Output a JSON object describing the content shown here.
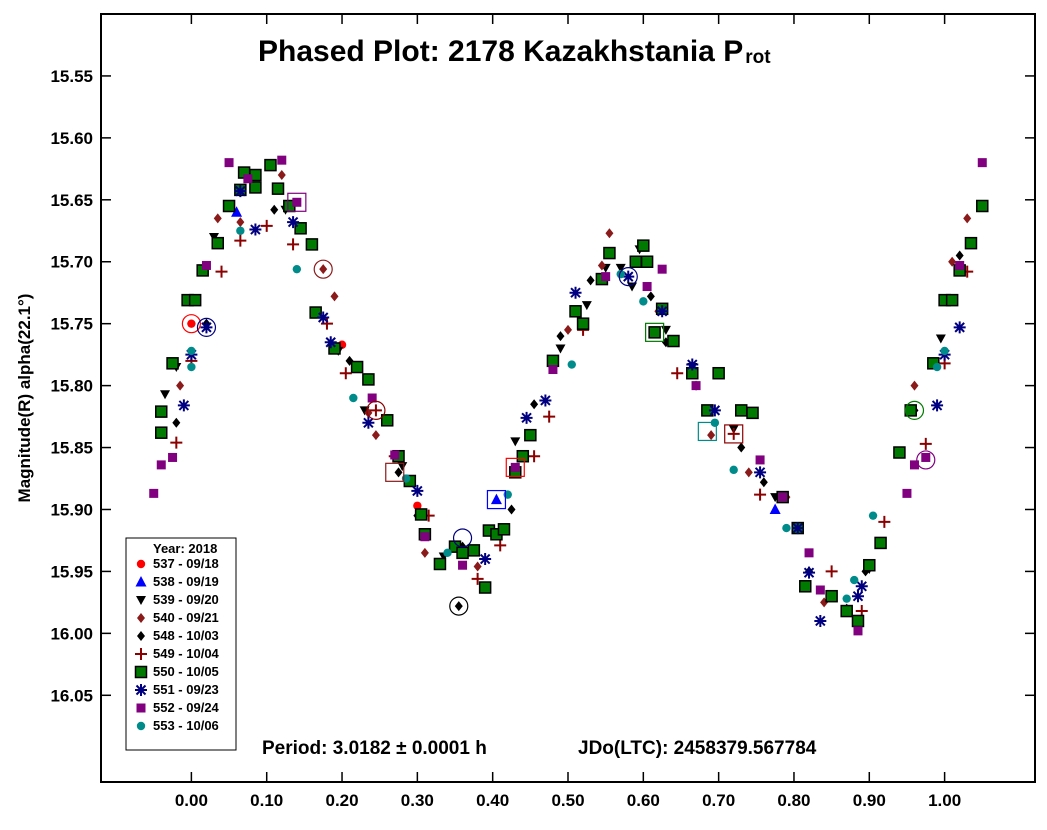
{
  "chart_data": {
    "type": "scatter",
    "title": "Phased Plot: 2178 Kazakhstania P",
    "title_subscript": "rot",
    "xlabel": "",
    "ylabel": "Magnitude(R) alpha(22.1°)",
    "xlim": [
      -0.12,
      1.12
    ],
    "ylim": [
      16.12,
      15.5
    ],
    "y_inverted": true,
    "grid": false,
    "x_ticks": [
      {
        "v": 0.0,
        "label": "0.00"
      },
      {
        "v": 0.1,
        "label": "0.10"
      },
      {
        "v": 0.2,
        "label": "0.20"
      },
      {
        "v": 0.3,
        "label": "0.30"
      },
      {
        "v": 0.4,
        "label": "0.40"
      },
      {
        "v": 0.5,
        "label": "0.50"
      },
      {
        "v": 0.6,
        "label": "0.60"
      },
      {
        "v": 0.7,
        "label": "0.70"
      },
      {
        "v": 0.8,
        "label": "0.80"
      },
      {
        "v": 0.9,
        "label": "0.90"
      },
      {
        "v": 1.0,
        "label": "1.00"
      }
    ],
    "y_ticks": [
      {
        "v": 15.55,
        "label": "15.55"
      },
      {
        "v": 15.6,
        "label": "15.60"
      },
      {
        "v": 15.65,
        "label": "15.65"
      },
      {
        "v": 15.7,
        "label": "15.70"
      },
      {
        "v": 15.75,
        "label": "15.75"
      },
      {
        "v": 15.8,
        "label": "15.80"
      },
      {
        "v": 15.85,
        "label": "15.85"
      },
      {
        "v": 15.9,
        "label": "15.90"
      },
      {
        "v": 15.95,
        "label": "15.95"
      },
      {
        "v": 16.0,
        "label": "16.00"
      },
      {
        "v": 16.05,
        "label": "16.05"
      }
    ],
    "annotations": {
      "period": "Period: 3.0182 ± 0.0001 h",
      "jdo": "JDo(LTC): 2458379.567784"
    },
    "legend_title": "Year: 2018",
    "legend_position": "bottom-left",
    "series": [
      {
        "name": "537 - 09/18",
        "marker": "circle",
        "color": "#ff0000",
        "points": [
          [
            0.0,
            15.75
          ],
          [
            0.2,
            15.767
          ],
          [
            0.3,
            15.897
          ]
        ]
      },
      {
        "name": "538 - 09/19",
        "marker": "triangle-up",
        "color": "#0000ff",
        "points": [
          [
            0.405,
            15.892
          ],
          [
            0.06,
            15.66
          ],
          [
            0.775,
            15.9
          ]
        ]
      },
      {
        "name": "539 - 09/20",
        "marker": "triangle-down",
        "color": "#000000",
        "points": [
          [
            -0.035,
            15.807
          ],
          [
            -0.02,
            15.785
          ],
          [
            0.03,
            15.68
          ],
          [
            0.125,
            15.658
          ],
          [
            0.195,
            15.772
          ],
          [
            0.23,
            15.82
          ],
          [
            0.28,
            15.865
          ],
          [
            0.335,
            15.938
          ],
          [
            0.43,
            15.845
          ],
          [
            0.49,
            15.77
          ],
          [
            0.525,
            15.735
          ],
          [
            0.55,
            15.705
          ],
          [
            0.57,
            15.705
          ],
          [
            0.595,
            15.69
          ],
          [
            0.585,
            15.72
          ],
          [
            0.63,
            15.755
          ],
          [
            0.665,
            15.785
          ],
          [
            0.72,
            15.835
          ],
          [
            0.775,
            15.89
          ],
          [
            0.85,
            15.97
          ],
          [
            0.9,
            15.948
          ],
          [
            0.995,
            15.762
          ],
          [
            1.035,
            15.685
          ]
        ]
      },
      {
        "name": "540 - 09/21",
        "marker": "diamond",
        "color": "#8b1a1a",
        "points": [
          [
            -0.015,
            15.8
          ],
          [
            0.035,
            15.665
          ],
          [
            0.065,
            15.668
          ],
          [
            0.12,
            15.63
          ],
          [
            0.175,
            15.706
          ],
          [
            0.19,
            15.728
          ],
          [
            0.235,
            15.822
          ],
          [
            0.245,
            15.84
          ],
          [
            0.31,
            15.935
          ],
          [
            0.38,
            15.946
          ],
          [
            0.5,
            15.755
          ],
          [
            0.545,
            15.703
          ],
          [
            0.555,
            15.677
          ],
          [
            0.62,
            15.74
          ],
          [
            0.69,
            15.84
          ],
          [
            0.74,
            15.87
          ],
          [
            0.79,
            15.89
          ],
          [
            0.84,
            15.975
          ],
          [
            0.96,
            15.8
          ],
          [
            1.01,
            15.7
          ],
          [
            1.03,
            15.665
          ]
        ]
      },
      {
        "name": "548 - 10/03",
        "marker": "diamond",
        "color": "#000000",
        "points": [
          [
            -0.02,
            15.83
          ],
          [
            0.02,
            15.75
          ],
          [
            0.11,
            15.658
          ],
          [
            0.21,
            15.78
          ],
          [
            0.275,
            15.87
          ],
          [
            0.3,
            15.905
          ],
          [
            0.355,
            15.978
          ],
          [
            0.36,
            15.93
          ],
          [
            0.425,
            15.9
          ],
          [
            0.455,
            15.815
          ],
          [
            0.49,
            15.76
          ],
          [
            0.53,
            15.715
          ],
          [
            0.61,
            15.728
          ],
          [
            0.63,
            15.765
          ],
          [
            0.67,
            15.8
          ],
          [
            0.73,
            15.85
          ],
          [
            0.76,
            15.878
          ],
          [
            0.82,
            15.95
          ],
          [
            0.87,
            15.98
          ],
          [
            0.895,
            15.95
          ],
          [
            0.96,
            15.82
          ],
          [
            1.02,
            15.695
          ]
        ]
      },
      {
        "name": "549 - 10/04",
        "marker": "plus",
        "color": "#8b0000",
        "points": [
          [
            -0.02,
            15.846
          ],
          [
            0.0,
            15.78
          ],
          [
            0.04,
            15.708
          ],
          [
            0.065,
            15.683
          ],
          [
            0.1,
            15.671
          ],
          [
            0.135,
            15.686
          ],
          [
            0.18,
            15.75
          ],
          [
            0.205,
            15.79
          ],
          [
            0.245,
            15.82
          ],
          [
            0.27,
            15.857
          ],
          [
            0.315,
            15.905
          ],
          [
            0.38,
            15.956
          ],
          [
            0.41,
            15.929
          ],
          [
            0.455,
            15.857
          ],
          [
            0.475,
            15.825
          ],
          [
            0.52,
            15.755
          ],
          [
            0.645,
            15.79
          ],
          [
            0.72,
            15.839
          ],
          [
            0.755,
            15.888
          ],
          [
            0.85,
            15.95
          ],
          [
            0.89,
            15.982
          ],
          [
            0.92,
            15.91
          ],
          [
            0.975,
            15.847
          ],
          [
            1.0,
            15.782
          ],
          [
            1.03,
            15.708
          ]
        ]
      },
      {
        "name": "550 - 10/05",
        "marker": "square",
        "color": "#007a00",
        "points": [
          [
            -0.04,
            15.838
          ],
          [
            -0.04,
            15.821
          ],
          [
            -0.025,
            15.782
          ],
          [
            -0.005,
            15.731
          ],
          [
            0.005,
            15.731
          ],
          [
            0.015,
            15.707
          ],
          [
            0.035,
            15.685
          ],
          [
            0.05,
            15.655
          ],
          [
            0.065,
            15.642
          ],
          [
            0.07,
            15.628
          ],
          [
            0.085,
            15.63
          ],
          [
            0.085,
            15.64
          ],
          [
            0.105,
            15.622
          ],
          [
            0.115,
            15.641
          ],
          [
            0.13,
            15.655
          ],
          [
            0.145,
            15.673
          ],
          [
            0.16,
            15.686
          ],
          [
            0.165,
            15.741
          ],
          [
            0.19,
            15.77
          ],
          [
            0.22,
            15.785
          ],
          [
            0.235,
            15.795
          ],
          [
            0.26,
            15.828
          ],
          [
            0.275,
            15.857
          ],
          [
            0.29,
            15.877
          ],
          [
            0.305,
            15.904
          ],
          [
            0.31,
            15.92
          ],
          [
            0.33,
            15.944
          ],
          [
            0.35,
            15.93
          ],
          [
            0.36,
            15.935
          ],
          [
            0.375,
            15.933
          ],
          [
            0.39,
            15.963
          ],
          [
            0.395,
            15.917
          ],
          [
            0.405,
            15.92
          ],
          [
            0.415,
            15.916
          ],
          [
            0.43,
            15.87
          ],
          [
            0.44,
            15.857
          ],
          [
            0.45,
            15.84
          ],
          [
            0.48,
            15.78
          ],
          [
            0.51,
            15.74
          ],
          [
            0.52,
            15.75
          ],
          [
            0.545,
            15.714
          ],
          [
            0.555,
            15.693
          ],
          [
            0.59,
            15.7
          ],
          [
            0.6,
            15.687
          ],
          [
            0.605,
            15.7
          ],
          [
            0.615,
            15.757
          ],
          [
            0.625,
            15.738
          ],
          [
            0.64,
            15.764
          ],
          [
            0.665,
            15.79
          ],
          [
            0.685,
            15.82
          ],
          [
            0.7,
            15.79
          ],
          [
            0.73,
            15.82
          ],
          [
            0.745,
            15.822
          ],
          [
            0.785,
            15.89
          ],
          [
            0.805,
            15.915
          ],
          [
            0.815,
            15.962
          ],
          [
            0.85,
            15.97
          ],
          [
            0.87,
            15.982
          ],
          [
            0.885,
            15.99
          ],
          [
            0.9,
            15.945
          ],
          [
            0.915,
            15.927
          ],
          [
            0.94,
            15.854
          ],
          [
            0.955,
            15.82
          ],
          [
            0.985,
            15.782
          ],
          [
            1.0,
            15.731
          ],
          [
            1.01,
            15.731
          ],
          [
            1.02,
            15.707
          ],
          [
            1.035,
            15.685
          ],
          [
            1.05,
            15.655
          ]
        ]
      },
      {
        "name": "551 - 09/23",
        "marker": "asterisk",
        "color": "#000080",
        "points": [
          [
            -0.01,
            15.816
          ],
          [
            0.0,
            15.775
          ],
          [
            0.02,
            15.753
          ],
          [
            0.065,
            15.643
          ],
          [
            0.085,
            15.674
          ],
          [
            0.135,
            15.668
          ],
          [
            0.175,
            15.745
          ],
          [
            0.185,
            15.765
          ],
          [
            0.235,
            15.83
          ],
          [
            0.3,
            15.885
          ],
          [
            0.39,
            15.94
          ],
          [
            0.445,
            15.826
          ],
          [
            0.47,
            15.812
          ],
          [
            0.51,
            15.725
          ],
          [
            0.58,
            15.712
          ],
          [
            0.625,
            15.74
          ],
          [
            0.665,
            15.783
          ],
          [
            0.695,
            15.82
          ],
          [
            0.755,
            15.87
          ],
          [
            0.805,
            15.915
          ],
          [
            0.82,
            15.951
          ],
          [
            0.835,
            15.99
          ],
          [
            0.885,
            15.97
          ],
          [
            0.89,
            15.962
          ],
          [
            0.99,
            15.816
          ],
          [
            1.0,
            15.775
          ],
          [
            1.02,
            15.753
          ]
        ]
      },
      {
        "name": "552 - 09/24",
        "marker": "square",
        "color": "#800080",
        "points": [
          [
            -0.05,
            15.887
          ],
          [
            -0.04,
            15.864
          ],
          [
            -0.025,
            15.858
          ],
          [
            0.02,
            15.703
          ],
          [
            0.05,
            15.62
          ],
          [
            0.075,
            15.633
          ],
          [
            0.12,
            15.618
          ],
          [
            0.14,
            15.652
          ],
          [
            0.24,
            15.81
          ],
          [
            0.27,
            15.856
          ],
          [
            0.31,
            15.922
          ],
          [
            0.36,
            15.945
          ],
          [
            0.43,
            15.866
          ],
          [
            0.48,
            15.787
          ],
          [
            0.55,
            15.712
          ],
          [
            0.605,
            15.72
          ],
          [
            0.625,
            15.706
          ],
          [
            0.67,
            15.8
          ],
          [
            0.755,
            15.86
          ],
          [
            0.785,
            15.89
          ],
          [
            0.82,
            15.935
          ],
          [
            0.835,
            15.965
          ],
          [
            0.885,
            15.998
          ],
          [
            0.95,
            15.887
          ],
          [
            0.96,
            15.864
          ],
          [
            0.975,
            15.858
          ],
          [
            1.02,
            15.703
          ],
          [
            1.05,
            15.62
          ]
        ]
      },
      {
        "name": "553 - 10/06",
        "marker": "circle",
        "color": "#008b8b",
        "points": [
          [
            0.0,
            15.785
          ],
          [
            0.0,
            15.772
          ],
          [
            0.065,
            15.675
          ],
          [
            0.14,
            15.706
          ],
          [
            0.215,
            15.81
          ],
          [
            0.285,
            15.875
          ],
          [
            0.34,
            15.935
          ],
          [
            0.42,
            15.888
          ],
          [
            0.505,
            15.783
          ],
          [
            0.57,
            15.71
          ],
          [
            0.6,
            15.732
          ],
          [
            0.695,
            15.83
          ],
          [
            0.72,
            15.868
          ],
          [
            0.79,
            15.915
          ],
          [
            0.87,
            15.972
          ],
          [
            0.88,
            15.957
          ],
          [
            0.905,
            15.905
          ],
          [
            0.99,
            15.785
          ],
          [
            1.0,
            15.772
          ]
        ]
      }
    ],
    "highlighted": [
      {
        "x": 0.0,
        "y": 15.75,
        "shape": "circle",
        "color": "#ff0000"
      },
      {
        "x": 0.02,
        "y": 15.753,
        "shape": "circle",
        "color": "#000080"
      },
      {
        "x": 0.14,
        "y": 15.652,
        "shape": "square",
        "color": "#800080"
      },
      {
        "x": 0.175,
        "y": 15.706,
        "shape": "circle",
        "color": "#8b1a1a"
      },
      {
        "x": 0.245,
        "y": 15.82,
        "shape": "circle",
        "color": "#8b0000"
      },
      {
        "x": 0.27,
        "y": 15.87,
        "shape": "square",
        "color": "#8b1a1a"
      },
      {
        "x": 0.355,
        "y": 15.978,
        "shape": "circle",
        "color": "#000000"
      },
      {
        "x": 0.36,
        "y": 15.923,
        "shape": "circle",
        "color": "#000080"
      },
      {
        "x": 0.405,
        "y": 15.892,
        "shape": "square",
        "color": "#0000ff"
      },
      {
        "x": 0.43,
        "y": 15.866,
        "shape": "square",
        "color": "#ff0000"
      },
      {
        "x": 0.58,
        "y": 15.712,
        "shape": "circle",
        "color": "#000080"
      },
      {
        "x": 0.615,
        "y": 15.757,
        "shape": "square",
        "color": "#007a00"
      },
      {
        "x": 0.685,
        "y": 15.837,
        "shape": "square",
        "color": "#008b8b"
      },
      {
        "x": 0.72,
        "y": 15.839,
        "shape": "square",
        "color": "#8b0000"
      },
      {
        "x": 0.96,
        "y": 15.82,
        "shape": "circle",
        "color": "#007a00"
      },
      {
        "x": 0.975,
        "y": 15.86,
        "shape": "circle",
        "color": "#800080"
      }
    ]
  }
}
